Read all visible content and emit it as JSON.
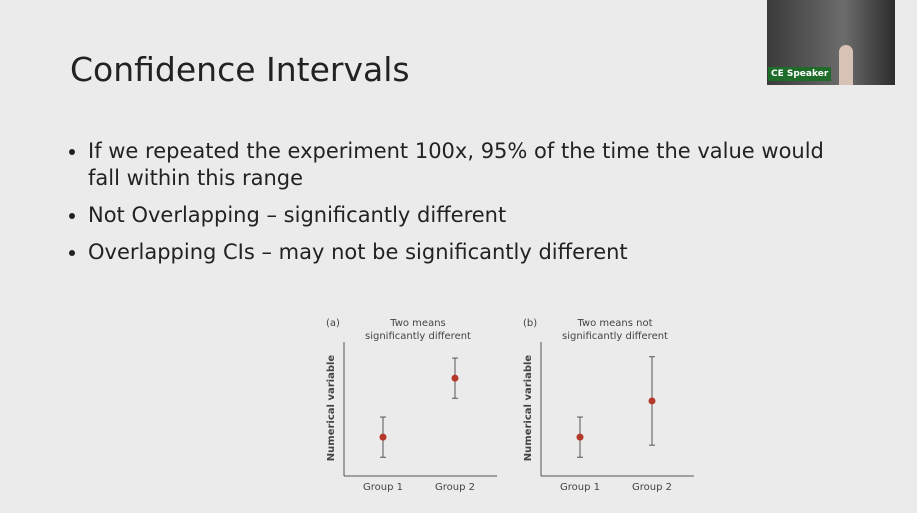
{
  "slide": {
    "title": "Confidence Intervals",
    "bullets": [
      "If we repeated the experiment 100x, 95% of the time the value would fall within this range",
      "Not Overlapping – significantly different",
      "Overlapping CIs – may not be significantly different"
    ]
  },
  "video": {
    "label": "CE Speaker"
  },
  "chart_data": [
    {
      "type": "errorbar",
      "panel": "(a)",
      "title_lines": [
        "Two means",
        "significantly different"
      ],
      "y_label": "Numerical variable",
      "categories": [
        "Group 1",
        "Group 2"
      ],
      "values": [
        2.9,
        7.3
      ],
      "errors": [
        1.5,
        1.5
      ],
      "ylim": [
        0,
        10
      ],
      "color": "#b5392b"
    },
    {
      "type": "errorbar",
      "panel": "(b)",
      "title_lines": [
        "Two means not",
        "significantly different"
      ],
      "y_label": "Numerical variable",
      "categories": [
        "Group 1",
        "Group 2"
      ],
      "values": [
        2.9,
        5.6
      ],
      "errors": [
        1.5,
        3.3
      ],
      "ylim": [
        0,
        10
      ],
      "color": "#b5392b"
    }
  ]
}
